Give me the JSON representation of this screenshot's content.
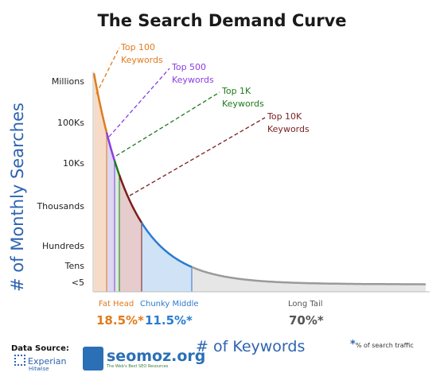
{
  "title": "The Search Demand Curve",
  "y_axis_label": "# of Monthly Searches",
  "x_axis_label": "# of Keywords",
  "chart_data": {
    "type": "area",
    "title": "The Search Demand Curve",
    "xlabel": "# of Keywords",
    "ylabel": "# of Monthly Searches",
    "y_ticks": [
      "Millions",
      "100Ks",
      "10Ks",
      "Thousands",
      "Hundreds",
      "Tens",
      "<5"
    ],
    "callouts": [
      {
        "line1": "Top 100",
        "line2": "Keywords",
        "color": "#e07b1e"
      },
      {
        "line1": "Top 500",
        "line2": "Keywords",
        "color": "#8a3de0"
      },
      {
        "line1": "Top 1K",
        "line2": "Keywords",
        "color": "#1e7a1e"
      },
      {
        "line1": "Top 10K",
        "line2": "Keywords",
        "color": "#7a1e1e"
      }
    ],
    "segments": [
      {
        "label": "Fat Head",
        "share": "18.5%*",
        "label_color": "#e07b1e",
        "share_color": "#e07b1e"
      },
      {
        "label": "Chunky Middle",
        "share": "11.5%*",
        "label_color": "#2b7bd0",
        "share_color": "#2b7bd0"
      },
      {
        "label": "Long Tail",
        "share": "70%*",
        "label_color": "#555555",
        "share_color": "#555555"
      }
    ],
    "curve_colors": [
      "#e07b1e",
      "#8a3de0",
      "#1e7a1e",
      "#7a1e1e",
      "#2b7bd0",
      "#9a9a9a"
    ],
    "fill_colors": [
      "#f6dcc8",
      "#ddd6f4",
      "#d8ecd8",
      "#e6cccc",
      "#cfe2f6",
      "#e6e6e6"
    ],
    "grid": false
  },
  "footnote": {
    "star": "*",
    "text": "% of search traffic"
  },
  "data_source": {
    "label": "Data Source:",
    "experian": "Experian",
    "hitwise": "Hitwise",
    "seomoz": "seomoz.org",
    "seomoz_tagline": "The Web's Best SEO Resources"
  }
}
